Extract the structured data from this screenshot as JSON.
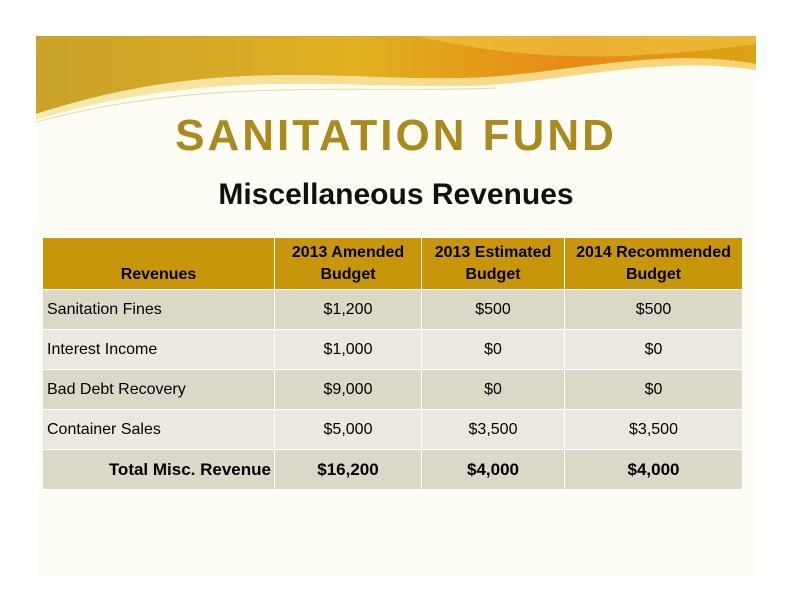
{
  "slide": {
    "title": "SANITATION FUND",
    "subtitle": "Miscellaneous Revenues"
  },
  "table": {
    "headers": [
      {
        "line1": "Revenues",
        "line2": ""
      },
      {
        "line1": "2013 Amended",
        "line2": "Budget"
      },
      {
        "line1": "2013 Estimated",
        "line2": "Budget"
      },
      {
        "line1": "2014 Recommended",
        "line2": "Budget"
      }
    ],
    "rows": [
      {
        "label": "Sanitation Fines",
        "amended": "$1,200",
        "estimated": "$500",
        "recommended": "$500"
      },
      {
        "label": "Interest Income",
        "amended": "$1,000",
        "estimated": "$0",
        "recommended": "$0"
      },
      {
        "label": "Bad Debt Recovery",
        "amended": "$9,000",
        "estimated": "$0",
        "recommended": "$0"
      },
      {
        "label": "Container Sales",
        "amended": "$5,000",
        "estimated": "$3,500",
        "recommended": "$3,500"
      }
    ],
    "total": {
      "label": "Total Misc. Revenue",
      "amended": "$16,200",
      "estimated": "$4,000",
      "recommended": "$4,000"
    }
  },
  "colors": {
    "title": "#a88a1f",
    "header_bg": "#c8960a",
    "row_dark": "#dcd8c8",
    "row_light": "#ebe9df",
    "swoosh_gold": "#d9a514",
    "swoosh_orange": "#e07a10"
  }
}
